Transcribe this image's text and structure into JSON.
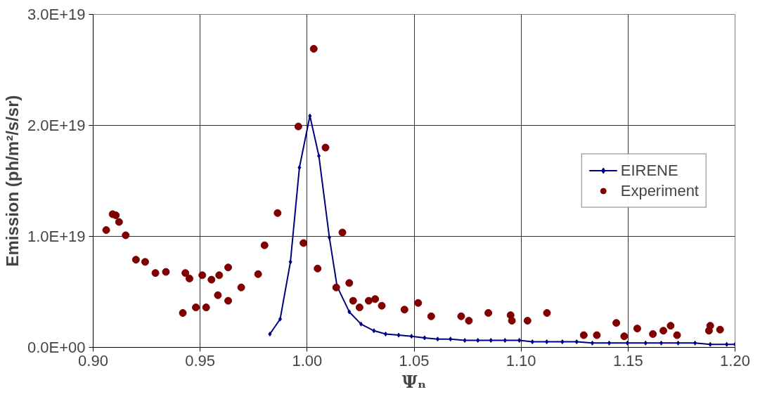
{
  "chart_data": {
    "type": "scatter",
    "xlabel": "Ψₙ",
    "ylabel": "Emission (ph/m²/s/sr)",
    "xlim": [
      0.9,
      1.2
    ],
    "xticks": [
      {
        "value": 0.9,
        "label": "0.90"
      },
      {
        "value": 0.95,
        "label": "0.95"
      },
      {
        "value": 1.0,
        "label": "1.00"
      },
      {
        "value": 1.05,
        "label": "1.05"
      },
      {
        "value": 1.1,
        "label": "1.10"
      },
      {
        "value": 1.15,
        "label": "1.15"
      },
      {
        "value": 1.2,
        "label": "1.20"
      }
    ],
    "ylim": [
      0,
      3e+19
    ],
    "yticks": [
      {
        "value": 0,
        "label": "0.0E+00"
      },
      {
        "value": 1e+19,
        "label": "1.0E+19"
      },
      {
        "value": 2e+19,
        "label": "2.0E+19"
      },
      {
        "value": 3e+19,
        "label": "3.0E+19"
      }
    ],
    "grid": true,
    "legend": "right",
    "series": [
      {
        "name": "EIRENE",
        "type": "line",
        "marker": "diamond",
        "line_style": "solid",
        "color": "#000080",
        "x": [
          0.9826,
          0.9874,
          0.9922,
          0.9964,
          1.0013,
          1.0055,
          1.0104,
          1.014,
          1.0197,
          1.0252,
          1.0312,
          1.0367,
          1.0428,
          1.0488,
          1.0549,
          1.061,
          1.067,
          1.0737,
          1.0798,
          1.0859,
          1.0925,
          1.0992,
          1.1053,
          1.112,
          1.1193,
          1.126,
          1.1333,
          1.1412,
          1.1497,
          1.1582,
          1.1655,
          1.1734,
          1.1813,
          1.1884,
          1.1961,
          1.2
        ],
        "values": [
          1.2e+18,
          2.55e+18,
          7.7e+18,
          1.62e+19,
          2.085e+19,
          1.725e+19,
          9.9e+18,
          5.5e+18,
          3.2e+18,
          2.1e+18,
          1.5e+18,
          1.2e+18,
          1.1e+18,
          1e+18,
          8.6e+17,
          7.5e+17,
          7.5e+17,
          6.3e+17,
          6.3e+17,
          6.3e+17,
          6.3e+17,
          6.3e+17,
          5e+17,
          5e+17,
          5e+17,
          5e+17,
          3.9e+17,
          3.9e+17,
          3.9e+17,
          3.9e+17,
          3.9e+17,
          3.9e+17,
          3.9e+17,
          2.7e+17,
          2.7e+17,
          2.7e+17
        ]
      },
      {
        "name": "Experiment",
        "marker": "circle",
        "color": "#800000",
        "x": [
          0.9061,
          0.9091,
          0.9106,
          0.9121,
          0.9152,
          0.92,
          0.9243,
          0.9291,
          0.934,
          0.9419,
          0.9431,
          0.945,
          0.948,
          0.951,
          0.9528,
          0.9553,
          0.9583,
          0.9589,
          0.9631,
          0.9631,
          0.9692,
          0.9771,
          0.9801,
          0.9862,
          0.9959,
          0.9983,
          1.0031,
          1.0049,
          1.0086,
          1.0136,
          1.0165,
          1.0197,
          1.0215,
          1.0245,
          1.0288,
          1.0318,
          1.0349,
          1.0455,
          1.0519,
          1.058,
          1.072,
          1.0756,
          1.0847,
          1.0951,
          1.0957,
          1.103,
          1.1121,
          1.1293,
          1.1354,
          1.1445,
          1.1482,
          1.1543,
          1.1616,
          1.1665,
          1.1699,
          1.1729,
          1.1878,
          1.1884,
          1.193
        ],
        "values": [
          1.057e+19,
          1.2e+19,
          1.19e+19,
          1.13e+19,
          1.01e+19,
          7.9e+18,
          7.7e+18,
          6.7e+18,
          6.8e+18,
          3.1e+18,
          6.7e+18,
          6.2e+18,
          3.6e+18,
          6.5e+18,
          3.6e+18,
          6.1e+18,
          4.7e+18,
          6.5e+18,
          4.2e+18,
          7.2e+18,
          5.4e+18,
          6.6e+18,
          9.2e+18,
          1.21e+19,
          1.99e+19,
          9.4e+18,
          2.69e+19,
          7.1e+18,
          1.8e+19,
          5.4e+18,
          1.035e+19,
          5.8e+18,
          4.2e+18,
          3.6e+18,
          4.2e+18,
          4.35e+18,
          3.75e+18,
          3.4e+18,
          4e+18,
          2.8e+18,
          2.8e+18,
          2.4e+18,
          3.1e+18,
          2.9e+18,
          2.4e+18,
          2.4e+18,
          3.1e+18,
          1.1e+18,
          1.1e+18,
          2.2e+18,
          1e+18,
          1.7e+18,
          1.2e+18,
          1.5e+18,
          1.95e+18,
          1.1e+18,
          1.5e+18,
          1.95e+18,
          1.6e+18
        ]
      }
    ]
  }
}
